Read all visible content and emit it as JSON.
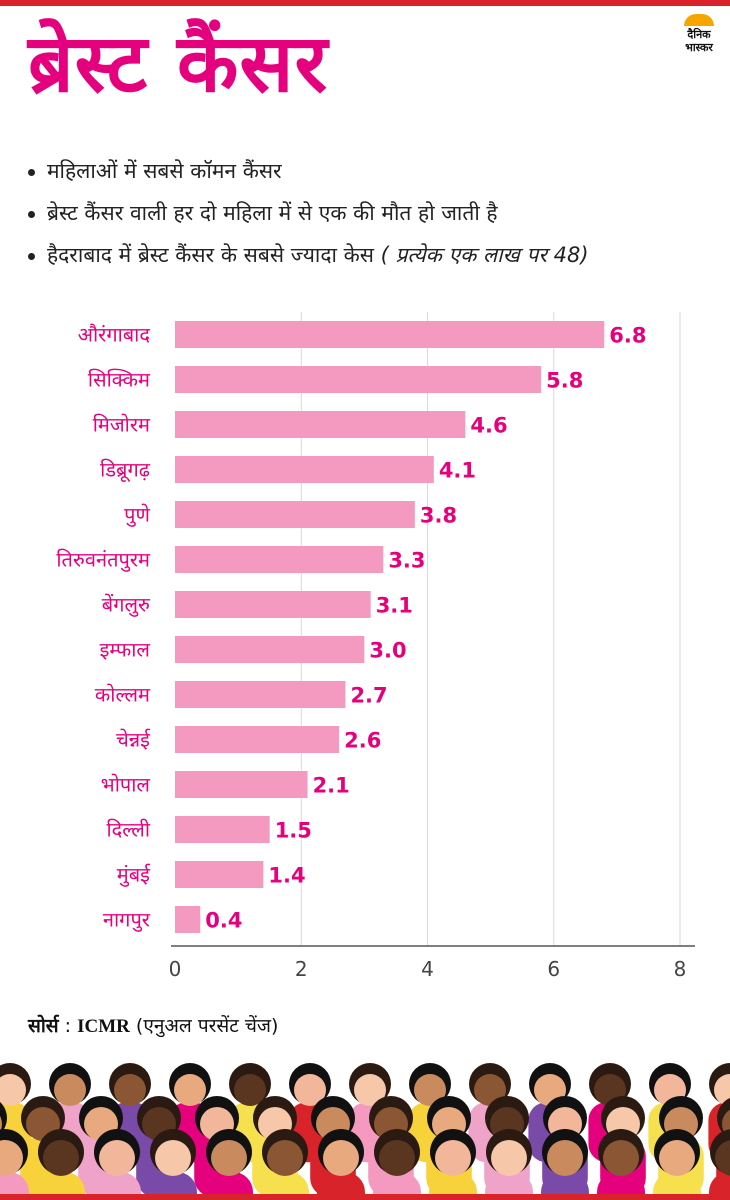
{
  "title": "ब्रेस्ट कैंसर",
  "logo": {
    "line1": "दैनिक",
    "line2": "भास्कर"
  },
  "bullets": [
    {
      "text": "महिलाओं में सबसे कॉमन कैंसर",
      "note": ""
    },
    {
      "text": "ब्रेस्ट कैंसर वाली हर दो महिला में से एक की मौत हो जाती है",
      "note": ""
    },
    {
      "text": "हैदराबाद में ब्रेस्ट कैंसर के सबसे ज्यादा केस ",
      "note": "( प्रत्येक एक लाख पर 48)"
    }
  ],
  "chart_data": {
    "type": "bar",
    "orientation": "horizontal",
    "categories": [
      "औरंगाबाद",
      "सिक्किम",
      "मिजोरम",
      "डिब्रूगढ़",
      "पुणे",
      "तिरुवनंतपुरम",
      "बेंगलुरु",
      "इम्फाल",
      "कोल्लम",
      "चेन्नई",
      "भोपाल",
      "दिल्ली",
      "मुंबई",
      "नागपुर"
    ],
    "values": [
      6.8,
      5.8,
      4.6,
      4.1,
      3.8,
      3.3,
      3.1,
      3.0,
      2.7,
      2.6,
      2.1,
      1.5,
      1.4,
      0.4
    ],
    "value_labels": [
      "6.8",
      "5.8",
      "4.6",
      "4.1",
      "3.8",
      "3.3",
      "3.1",
      "3.0",
      "2.7",
      "2.6",
      "2.1",
      "1.5",
      "1.4",
      "0.4"
    ],
    "xticks": [
      0,
      2,
      4,
      6,
      8
    ],
    "xlim": [
      0,
      8
    ],
    "grid": true,
    "bar_color": "#f49ac1",
    "label_color": "#e5007e"
  },
  "source": {
    "label": "सोर्स",
    "sep": " : ",
    "org": "ICMR",
    "detail": " (एनुअल परसेंट चेंज)"
  },
  "colors": {
    "accent": "#e5007e",
    "bar_top": "#d8232a"
  }
}
